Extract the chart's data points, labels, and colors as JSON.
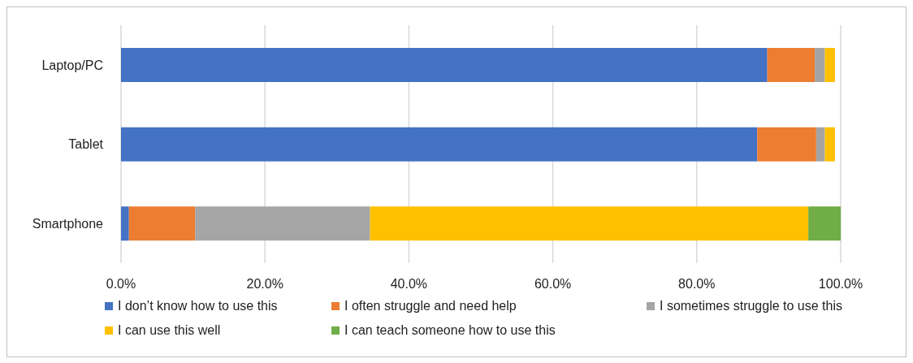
{
  "chart_data": {
    "type": "bar",
    "orientation": "horizontal",
    "stacked": true,
    "categories": [
      "Laptop/PC",
      "Tablet",
      "Smartphone"
    ],
    "series": [
      {
        "name": "I don’t know how to use this",
        "color": "#4472c4",
        "values": [
          89.8,
          88.4,
          1.1
        ]
      },
      {
        "name": "I often struggle and need help",
        "color": "#ed7d31",
        "values": [
          6.6,
          8.2,
          9.2
        ]
      },
      {
        "name": "I sometimes struggle to use this",
        "color": "#a5a5a5",
        "values": [
          1.4,
          1.2,
          24.3
        ]
      },
      {
        "name": "I can use this well",
        "color": "#ffc000",
        "values": [
          1.4,
          1.4,
          60.9
        ]
      },
      {
        "name": "I can teach someone how to use this",
        "color": "#70ad47",
        "values": [
          0,
          0,
          4.5
        ]
      }
    ],
    "xlim": [
      0,
      100
    ],
    "xticks": [
      {
        "value": 0,
        "label": "0.0%"
      },
      {
        "value": 20,
        "label": "20.0%"
      },
      {
        "value": 40,
        "label": "40.0%"
      },
      {
        "value": 60,
        "label": "60.0%"
      },
      {
        "value": 80,
        "label": "80.0%"
      },
      {
        "value": 100,
        "label": "100.0%"
      }
    ],
    "grid": "x",
    "legend": "bottom"
  }
}
